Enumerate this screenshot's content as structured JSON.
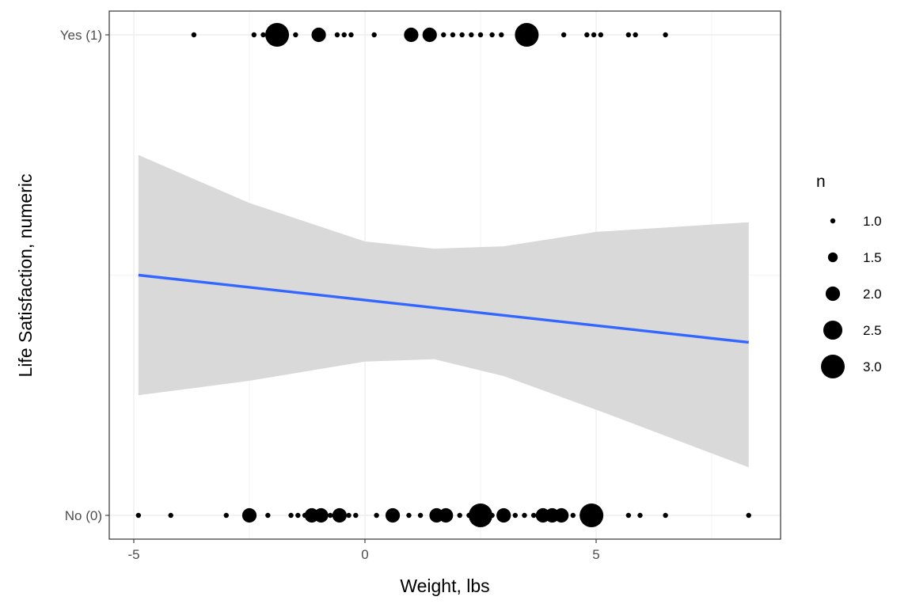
{
  "chart_data": {
    "type": "scatter",
    "xlabel": "Weight, lbs",
    "ylabel": "Life Satisfaction, numeric",
    "xlim": [
      -5.4,
      9.1
    ],
    "ylim": [
      -0.05,
      1.05
    ],
    "x_ticks": [
      -5,
      0,
      5
    ],
    "x_tick_labels": [
      "-5",
      "0",
      "5"
    ],
    "y_ticks": [
      0,
      1
    ],
    "y_tick_labels": [
      "No (0)",
      "Yes (1)"
    ],
    "grid": true,
    "legend": {
      "title": "n",
      "placement": "right",
      "entries": [
        {
          "label": "1.0",
          "n": 1.0
        },
        {
          "label": "1.5",
          "n": 1.5
        },
        {
          "label": "2.0",
          "n": 2.0
        },
        {
          "label": "2.5",
          "n": 2.5
        },
        {
          "label": "3.0",
          "n": 3.0
        }
      ]
    },
    "points": [
      {
        "x": -3.7,
        "y": 1,
        "n": 1
      },
      {
        "x": -2.4,
        "y": 1,
        "n": 1
      },
      {
        "x": -2.2,
        "y": 1,
        "n": 1
      },
      {
        "x": -1.9,
        "y": 1,
        "n": 3
      },
      {
        "x": -1.5,
        "y": 1,
        "n": 1
      },
      {
        "x": -1.0,
        "y": 1,
        "n": 2
      },
      {
        "x": -0.6,
        "y": 1,
        "n": 1
      },
      {
        "x": -0.45,
        "y": 1,
        "n": 1
      },
      {
        "x": -0.3,
        "y": 1,
        "n": 1
      },
      {
        "x": 0.2,
        "y": 1,
        "n": 1
      },
      {
        "x": 1.0,
        "y": 1,
        "n": 2
      },
      {
        "x": 1.4,
        "y": 1,
        "n": 2
      },
      {
        "x": 1.7,
        "y": 1,
        "n": 1
      },
      {
        "x": 1.9,
        "y": 1,
        "n": 1
      },
      {
        "x": 2.1,
        "y": 1,
        "n": 1
      },
      {
        "x": 2.3,
        "y": 1,
        "n": 1
      },
      {
        "x": 2.5,
        "y": 1,
        "n": 1
      },
      {
        "x": 2.75,
        "y": 1,
        "n": 1
      },
      {
        "x": 2.95,
        "y": 1,
        "n": 1
      },
      {
        "x": 3.5,
        "y": 1,
        "n": 3
      },
      {
        "x": 4.3,
        "y": 1,
        "n": 1
      },
      {
        "x": 4.8,
        "y": 1,
        "n": 1
      },
      {
        "x": 4.95,
        "y": 1,
        "n": 1
      },
      {
        "x": 5.1,
        "y": 1,
        "n": 1
      },
      {
        "x": 5.7,
        "y": 1,
        "n": 1
      },
      {
        "x": 5.85,
        "y": 1,
        "n": 1
      },
      {
        "x": 6.5,
        "y": 1,
        "n": 1
      },
      {
        "x": -4.9,
        "y": 0,
        "n": 1
      },
      {
        "x": -4.2,
        "y": 0,
        "n": 1
      },
      {
        "x": -3.0,
        "y": 0,
        "n": 1
      },
      {
        "x": -2.5,
        "y": 0,
        "n": 2
      },
      {
        "x": -2.1,
        "y": 0,
        "n": 1
      },
      {
        "x": -1.6,
        "y": 0,
        "n": 1
      },
      {
        "x": -1.45,
        "y": 0,
        "n": 1
      },
      {
        "x": -1.3,
        "y": 0,
        "n": 1
      },
      {
        "x": -1.15,
        "y": 0,
        "n": 2
      },
      {
        "x": -0.95,
        "y": 0,
        "n": 2
      },
      {
        "x": -0.75,
        "y": 0,
        "n": 1
      },
      {
        "x": -0.55,
        "y": 0,
        "n": 2
      },
      {
        "x": -0.35,
        "y": 0,
        "n": 1
      },
      {
        "x": -0.2,
        "y": 0,
        "n": 1
      },
      {
        "x": 0.25,
        "y": 0,
        "n": 1
      },
      {
        "x": 0.6,
        "y": 0,
        "n": 2
      },
      {
        "x": 0.95,
        "y": 0,
        "n": 1
      },
      {
        "x": 1.2,
        "y": 0,
        "n": 1
      },
      {
        "x": 1.45,
        "y": 0,
        "n": 1
      },
      {
        "x": 1.55,
        "y": 0,
        "n": 2
      },
      {
        "x": 1.75,
        "y": 0,
        "n": 2
      },
      {
        "x": 2.05,
        "y": 0,
        "n": 1
      },
      {
        "x": 2.25,
        "y": 0,
        "n": 1
      },
      {
        "x": 2.5,
        "y": 0,
        "n": 3
      },
      {
        "x": 2.75,
        "y": 0,
        "n": 1
      },
      {
        "x": 3.0,
        "y": 0,
        "n": 2
      },
      {
        "x": 3.25,
        "y": 0,
        "n": 1
      },
      {
        "x": 3.45,
        "y": 0,
        "n": 1
      },
      {
        "x": 3.65,
        "y": 0,
        "n": 1
      },
      {
        "x": 3.85,
        "y": 0,
        "n": 2
      },
      {
        "x": 4.05,
        "y": 0,
        "n": 2
      },
      {
        "x": 4.25,
        "y": 0,
        "n": 2
      },
      {
        "x": 4.5,
        "y": 0,
        "n": 1
      },
      {
        "x": 4.7,
        "y": 0,
        "n": 1
      },
      {
        "x": 4.9,
        "y": 0,
        "n": 3
      },
      {
        "x": 5.7,
        "y": 0,
        "n": 1
      },
      {
        "x": 5.95,
        "y": 0,
        "n": 1
      },
      {
        "x": 6.5,
        "y": 0,
        "n": 1
      },
      {
        "x": 8.3,
        "y": 0,
        "n": 1
      }
    ],
    "fit_line": {
      "color": "#3366ff",
      "x": [
        -4.9,
        8.3
      ],
      "y": [
        0.5,
        0.36
      ]
    },
    "confidence_band": {
      "color": "#d9d9d9",
      "x": [
        -4.9,
        -2.5,
        0,
        1.5,
        3,
        5,
        8.3
      ],
      "upper": [
        0.75,
        0.65,
        0.57,
        0.555,
        0.56,
        0.59,
        0.61
      ],
      "lower": [
        0.25,
        0.28,
        0.32,
        0.325,
        0.29,
        0.22,
        0.1
      ]
    }
  }
}
